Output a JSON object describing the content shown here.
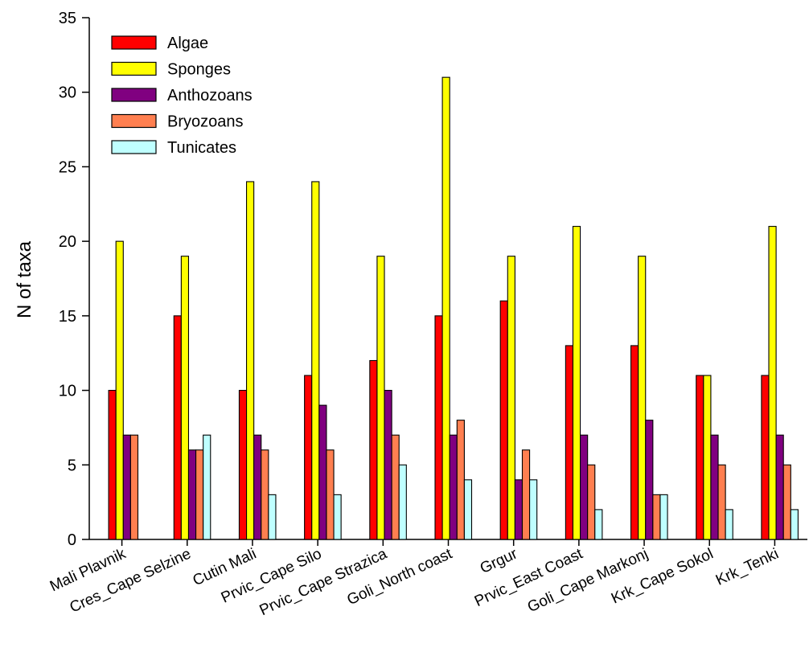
{
  "chart_data": {
    "type": "bar",
    "xlabel": "",
    "ylabel": "N of taxa",
    "ylim": [
      0,
      35
    ],
    "yticks": [
      0,
      5,
      10,
      15,
      20,
      25,
      30,
      35
    ],
    "legend_position": "top-left",
    "grid": false,
    "categories": [
      "Mali Plavnik",
      "Cres_Cape Selzine",
      "Cutin Mali",
      "Prvic_Cape Silo",
      "Prvic_Cape Strazica",
      "Goli_North coast",
      "Grgur",
      "Prvic_East Coast",
      "Goli_Cape Markonj",
      "Krk_Cape Sokol",
      "Krk_Tenki"
    ],
    "series": [
      {
        "name": "Algae",
        "color": "#ff0000",
        "values": [
          10,
          15,
          10,
          11,
          12,
          15,
          16,
          13,
          13,
          11,
          11
        ]
      },
      {
        "name": "Sponges",
        "color": "#ffff00",
        "values": [
          20,
          19,
          24,
          24,
          19,
          31,
          19,
          21,
          19,
          11,
          21
        ]
      },
      {
        "name": "Anthozoans",
        "color": "#800080",
        "values": [
          7,
          6,
          7,
          9,
          10,
          7,
          4,
          7,
          8,
          7,
          7
        ]
      },
      {
        "name": "Bryozoans",
        "color": "#ff7f50",
        "values": [
          7,
          6,
          6,
          6,
          7,
          8,
          6,
          5,
          3,
          5,
          5
        ]
      },
      {
        "name": "Tunicates",
        "color": "#bfffff",
        "values": [
          0,
          7,
          3,
          3,
          5,
          4,
          4,
          2,
          3,
          2,
          2
        ]
      }
    ]
  }
}
